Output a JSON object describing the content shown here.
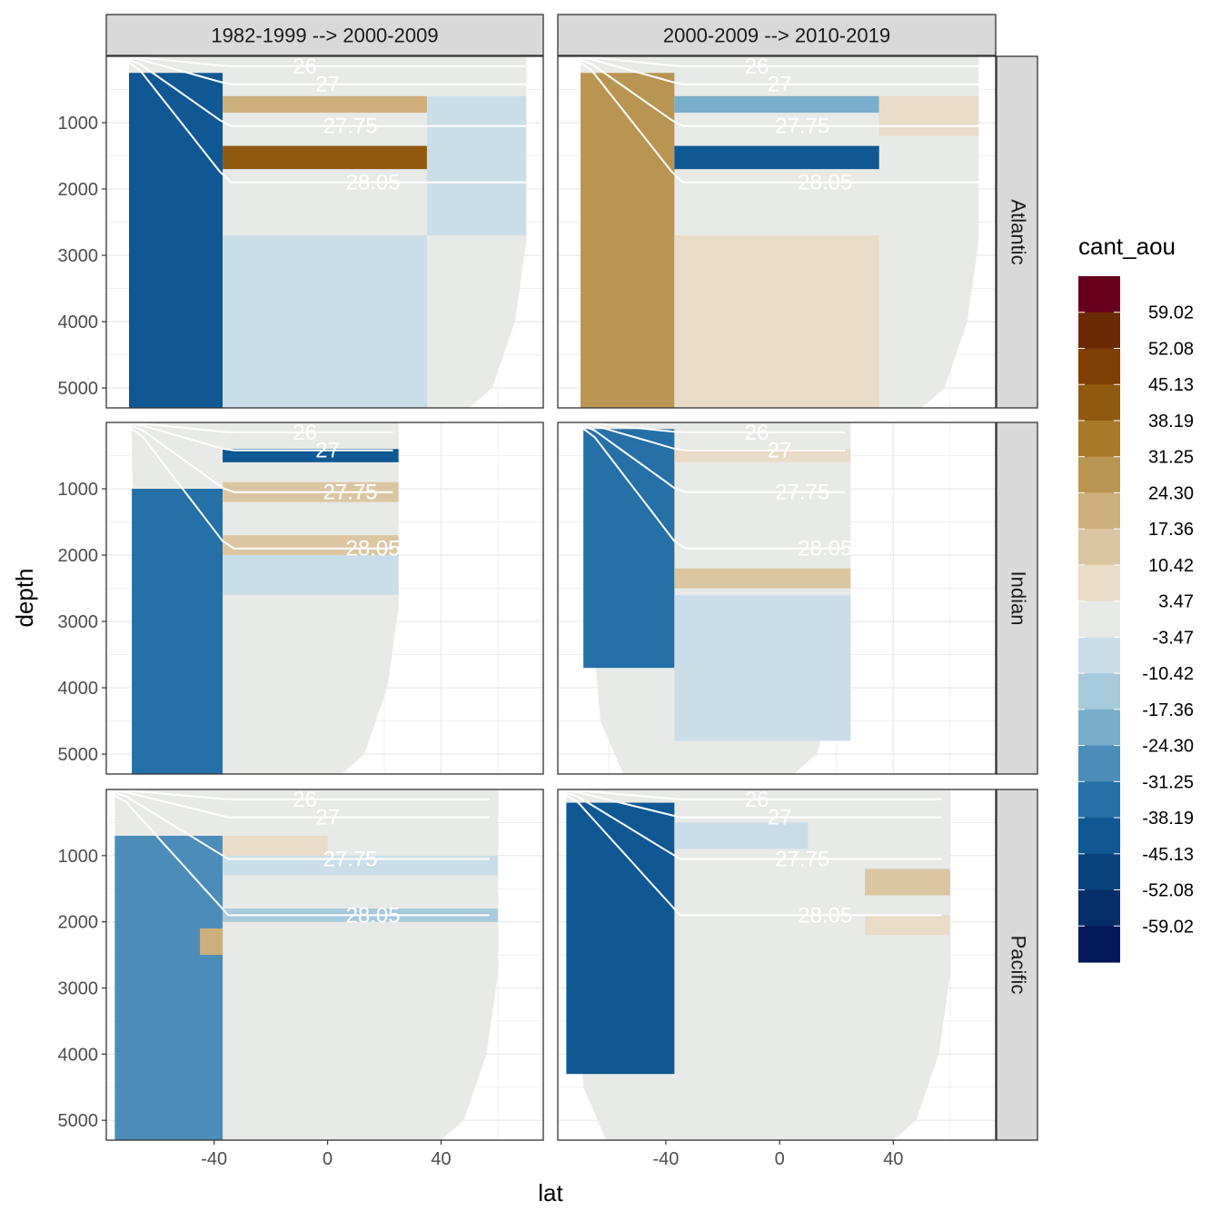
{
  "chart_data": {
    "type": "heatmap",
    "title": "",
    "xlabel": "lat",
    "ylabel": "depth",
    "xlim": [
      -78,
      76
    ],
    "ylim": [
      5300,
      0
    ],
    "x_ticks": [
      -40,
      0,
      40
    ],
    "x_tick_labels": [
      "-40",
      "0",
      "40"
    ],
    "y_ticks": [
      1000,
      2000,
      3000,
      4000,
      5000
    ],
    "y_tick_labels": [
      "1000",
      "2000",
      "3000",
      "4000",
      "5000"
    ],
    "column_facets": [
      "1982-1999 --> 2000-2009",
      "2000-2009 --> 2010-2019"
    ],
    "row_facets": [
      "Atlantic",
      "Indian",
      "Pacific"
    ],
    "legend": {
      "title": "cant_aou",
      "breaks": [
        "59.02",
        "52.08",
        "45.13",
        "38.19",
        "31.25",
        "24.30",
        "17.36",
        "10.42",
        "3.47",
        "-3.47",
        "-10.42",
        "-17.36",
        "-24.30",
        "-31.25",
        "-38.19",
        "-45.13",
        "-52.08",
        "-59.02"
      ],
      "colors": [
        "#67001f",
        "#6b2a05",
        "#7f3e02",
        "#8f5a10",
        "#a87a2a",
        "#b99552",
        "#ccaf7c",
        "#dcc6a2",
        "#eadbc6",
        "#e8eae7",
        "#cadee9",
        "#a6c9dc",
        "#7aaecb",
        "#4b8db8",
        "#2570a6",
        "#0f5894",
        "#0a427e",
        "#062e68",
        "#03195a"
      ]
    },
    "density_contours": [
      {
        "label": "26",
        "approx_depth": 150
      },
      {
        "label": "27",
        "approx_depth": 420
      },
      {
        "label": "27.75",
        "approx_depth": 1050
      },
      {
        "label": "28.05",
        "approx_depth": 1900
      }
    ],
    "panels": [
      {
        "column": "1982-1999 --> 2000-2009",
        "row": "Atlantic",
        "lat_range": [
          -70,
          70
        ],
        "max_depth": 5300,
        "regions": [
          {
            "lat": [
              -70,
              -37
            ],
            "depth": [
              250,
              5300
            ],
            "value": -42
          },
          {
            "lat": [
              -37,
              35
            ],
            "depth": [
              1350,
              1700
            ],
            "value": 45
          },
          {
            "lat": [
              -37,
              35
            ],
            "depth": [
              600,
              850
            ],
            "value": 20
          },
          {
            "lat": [
              -37,
              35
            ],
            "depth": [
              2700,
              5300
            ],
            "value": -6
          },
          {
            "lat": [
              35,
              70
            ],
            "depth": [
              600,
              2700
            ],
            "value": -6
          }
        ]
      },
      {
        "column": "2000-2009 --> 2010-2019",
        "row": "Atlantic",
        "lat_range": [
          -70,
          70
        ],
        "max_depth": 5300,
        "regions": [
          {
            "lat": [
              -70,
              -37
            ],
            "depth": [
              250,
              5300
            ],
            "value": 28
          },
          {
            "lat": [
              -37,
              35
            ],
            "depth": [
              1350,
              1700
            ],
            "value": -42
          },
          {
            "lat": [
              -37,
              35
            ],
            "depth": [
              600,
              850
            ],
            "value": -24
          },
          {
            "lat": [
              -37,
              35
            ],
            "depth": [
              2700,
              5300
            ],
            "value": 8
          },
          {
            "lat": [
              35,
              70
            ],
            "depth": [
              600,
              1200
            ],
            "value": 8
          }
        ]
      },
      {
        "column": "1982-1999 --> 2000-2009",
        "row": "Indian",
        "lat_range": [
          -69,
          25
        ],
        "max_depth": 5300,
        "regions": [
          {
            "lat": [
              -69,
              -37
            ],
            "depth": [
              1000,
              5300
            ],
            "value": -36
          },
          {
            "lat": [
              -37,
              25
            ],
            "depth": [
              400,
              600
            ],
            "value": -40
          },
          {
            "lat": [
              -37,
              25
            ],
            "depth": [
              900,
              1200
            ],
            "value": 12
          },
          {
            "lat": [
              -37,
              25
            ],
            "depth": [
              1700,
              2000
            ],
            "value": 14
          },
          {
            "lat": [
              -37,
              25
            ],
            "depth": [
              2000,
              2600
            ],
            "value": -8
          }
        ]
      },
      {
        "column": "2000-2009 --> 2010-2019",
        "row": "Indian",
        "lat_range": [
          -69,
          25
        ],
        "max_depth": 5300,
        "regions": [
          {
            "lat": [
              -69,
              -37
            ],
            "depth": [
              100,
              3700
            ],
            "value": -35
          },
          {
            "lat": [
              -37,
              25
            ],
            "depth": [
              400,
              600
            ],
            "value": 10
          },
          {
            "lat": [
              -37,
              25
            ],
            "depth": [
              2200,
              2500
            ],
            "value": 12
          },
          {
            "lat": [
              -37,
              25
            ],
            "depth": [
              2600,
              4800
            ],
            "value": -6
          }
        ]
      },
      {
        "column": "1982-1999 --> 2000-2009",
        "row": "Pacific",
        "lat_range": [
          -75,
          60
        ],
        "max_depth": 5300,
        "regions": [
          {
            "lat": [
              -75,
              -37
            ],
            "depth": [
              700,
              5300
            ],
            "value": -30
          },
          {
            "lat": [
              -37,
              0
            ],
            "depth": [
              700,
              1100
            ],
            "value": 10
          },
          {
            "lat": [
              -37,
              60
            ],
            "depth": [
              1000,
              1300
            ],
            "value": -10
          },
          {
            "lat": [
              -37,
              60
            ],
            "depth": [
              1800,
              2000
            ],
            "value": -12
          },
          {
            "lat": [
              -45,
              -37
            ],
            "depth": [
              2100,
              2500
            ],
            "value": 22
          }
        ]
      },
      {
        "column": "2000-2009 --> 2010-2019",
        "row": "Pacific",
        "lat_range": [
          -75,
          60
        ],
        "max_depth": 5300,
        "regions": [
          {
            "lat": [
              -75,
              -37
            ],
            "depth": [
              200,
              4300
            ],
            "value": -40
          },
          {
            "lat": [
              -37,
              10
            ],
            "depth": [
              500,
              900
            ],
            "value": -8
          },
          {
            "lat": [
              30,
              60
            ],
            "depth": [
              1200,
              1600
            ],
            "value": 14
          },
          {
            "lat": [
              30,
              60
            ],
            "depth": [
              1900,
              2200
            ],
            "value": 8
          }
        ]
      }
    ]
  }
}
